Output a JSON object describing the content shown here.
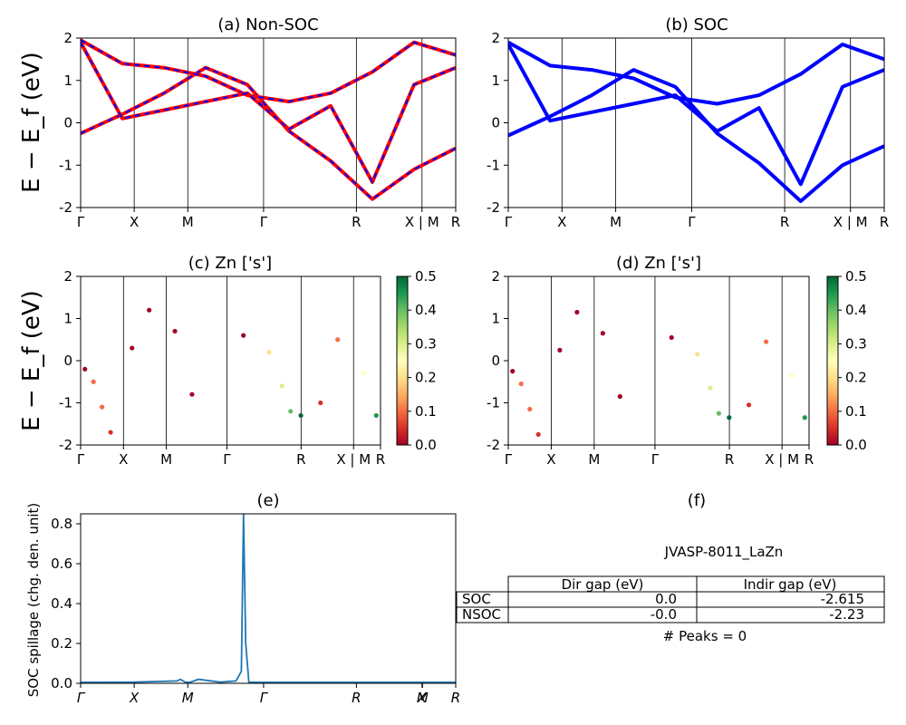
{
  "colors": {
    "nonsoc_line": "#ff0000",
    "nonsoc_dash": "#0000ff",
    "soc_line": "#0000ff",
    "spillage_line": "#1f77b4",
    "colormap": "RdYlGn"
  },
  "labels": {
    "ylabel_main": "E − E_f (eV)",
    "ylabel_spillage": "SOC spillage (chg. den. unit)"
  },
  "kpath": {
    "labels": [
      "Γ",
      "X",
      "M",
      "Γ",
      "R",
      "X | M",
      "R"
    ],
    "positions": [
      0,
      0.5,
      1.0,
      1.7071,
      2.5731,
      3.1855,
      3.5
    ]
  },
  "chart_data": [
    {
      "id": "a",
      "type": "line",
      "title": "(a) Non-SOC",
      "ylim": [
        -2,
        2
      ],
      "yticks": [
        -2,
        -1,
        0,
        1,
        2
      ],
      "series": [
        {
          "values": [
            -0.25,
            0.2,
            0.7,
            1.3,
            0.9,
            -0.2,
            -0.9,
            -1.8,
            -1.1,
            -0.6
          ]
        },
        {
          "values": [
            1.95,
            1.4,
            1.3,
            1.1,
            0.65,
            0.5,
            0.7,
            1.2,
            1.9,
            1.6
          ]
        },
        {
          "values": [
            1.9,
            0.1,
            0.3,
            0.5,
            0.7,
            -0.15,
            0.4,
            -1.4,
            0.9,
            1.3
          ]
        }
      ]
    },
    {
      "id": "b",
      "type": "line",
      "title": "(b) SOC",
      "ylim": [
        -2,
        2
      ],
      "yticks": [
        -2,
        -1,
        0,
        1,
        2
      ],
      "series": [
        {
          "values": [
            -0.3,
            0.15,
            0.65,
            1.25,
            0.85,
            -0.25,
            -0.95,
            -1.85,
            -1.0,
            -0.55
          ]
        },
        {
          "values": [
            1.9,
            1.35,
            1.25,
            1.05,
            0.6,
            0.45,
            0.65,
            1.15,
            1.85,
            1.5
          ]
        },
        {
          "values": [
            1.85,
            0.05,
            0.25,
            0.45,
            0.65,
            -0.2,
            0.35,
            -1.45,
            0.85,
            1.25
          ]
        }
      ]
    },
    {
      "id": "c",
      "type": "scatter",
      "title": "(c)  Zn ['s']",
      "ylim": [
        -2,
        2
      ],
      "yticks": [
        -2,
        -1,
        0,
        1,
        2
      ],
      "colorbar": {
        "min": 0.0,
        "max": 0.5,
        "ticks": [
          "0.0",
          "0.1",
          "0.2",
          "0.3",
          "0.4",
          "0.5"
        ]
      },
      "points": [
        {
          "x": 0.05,
          "y": -0.2,
          "c": 0.02
        },
        {
          "x": 0.15,
          "y": -0.5,
          "c": 0.08
        },
        {
          "x": 0.25,
          "y": -1.1,
          "c": 0.09
        },
        {
          "x": 0.35,
          "y": -1.7,
          "c": 0.07
        },
        {
          "x": 0.6,
          "y": 0.3,
          "c": 0.01
        },
        {
          "x": 0.8,
          "y": 1.2,
          "c": 0.01
        },
        {
          "x": 1.1,
          "y": 0.7,
          "c": 0.01
        },
        {
          "x": 1.3,
          "y": -0.8,
          "c": 0.01
        },
        {
          "x": 1.9,
          "y": 0.6,
          "c": 0.02
        },
        {
          "x": 2.2,
          "y": 0.2,
          "c": 0.22
        },
        {
          "x": 2.35,
          "y": -0.6,
          "c": 0.3
        },
        {
          "x": 2.45,
          "y": -1.2,
          "c": 0.42
        },
        {
          "x": 2.57,
          "y": -1.3,
          "c": 0.5
        },
        {
          "x": 2.8,
          "y": -1.0,
          "c": 0.03
        },
        {
          "x": 3.0,
          "y": 0.5,
          "c": 0.12
        },
        {
          "x": 3.3,
          "y": -0.3,
          "c": 0.25
        },
        {
          "x": 3.45,
          "y": -1.3,
          "c": 0.45
        }
      ]
    },
    {
      "id": "d",
      "type": "scatter",
      "title": "(d) Zn ['s']",
      "ylim": [
        -2,
        2
      ],
      "yticks": [
        -2,
        -1,
        0,
        1,
        2
      ],
      "colorbar": {
        "min": 0.0,
        "max": 0.5,
        "ticks": [
          "0.0",
          "0.1",
          "0.2",
          "0.3",
          "0.4",
          "0.5"
        ]
      },
      "points": [
        {
          "x": 0.05,
          "y": -0.25,
          "c": 0.02
        },
        {
          "x": 0.15,
          "y": -0.55,
          "c": 0.08
        },
        {
          "x": 0.25,
          "y": -1.15,
          "c": 0.09
        },
        {
          "x": 0.35,
          "y": -1.75,
          "c": 0.07
        },
        {
          "x": 0.6,
          "y": 0.25,
          "c": 0.01
        },
        {
          "x": 0.8,
          "y": 1.15,
          "c": 0.01
        },
        {
          "x": 1.1,
          "y": 0.65,
          "c": 0.01
        },
        {
          "x": 1.3,
          "y": -0.85,
          "c": 0.01
        },
        {
          "x": 1.9,
          "y": 0.55,
          "c": 0.02
        },
        {
          "x": 2.2,
          "y": 0.15,
          "c": 0.22
        },
        {
          "x": 2.35,
          "y": -0.65,
          "c": 0.3
        },
        {
          "x": 2.45,
          "y": -1.25,
          "c": 0.42
        },
        {
          "x": 2.57,
          "y": -1.35,
          "c": 0.5
        },
        {
          "x": 2.8,
          "y": -1.05,
          "c": 0.03
        },
        {
          "x": 3.0,
          "y": 0.45,
          "c": 0.12
        },
        {
          "x": 3.3,
          "y": -0.35,
          "c": 0.25
        },
        {
          "x": 3.45,
          "y": -1.35,
          "c": 0.45
        }
      ]
    },
    {
      "id": "e",
      "type": "line",
      "title": "(e)",
      "ylabel": "SOC spillage (chg. den. unit)",
      "ylim": [
        0,
        0.85
      ],
      "yticks": [
        "0.0",
        "0.2",
        "0.4",
        "0.6",
        "0.8"
      ],
      "xticks": [
        "Γ",
        "X",
        "M",
        "Γ",
        "R",
        "X",
        "M",
        "R"
      ],
      "x": [
        0,
        0.5,
        0.9,
        0.93,
        0.98,
        1.02,
        1.1,
        1.3,
        1.45,
        1.5,
        1.52,
        1.54,
        1.57,
        1.6,
        2.0,
        2.5,
        3.0,
        3.5
      ],
      "y": [
        0.005,
        0.006,
        0.012,
        0.02,
        0.005,
        0.005,
        0.02,
        0.006,
        0.012,
        0.06,
        0.85,
        0.2,
        0.005,
        0.005,
        0.005,
        0.005,
        0.005,
        0.005
      ]
    },
    {
      "id": "f",
      "type": "table",
      "title": "(f)",
      "caption": "JVASP-8011_LaZn",
      "columns": [
        "Dir gap (eV)",
        "Indir gap (eV)"
      ],
      "rows": [
        {
          "label": "SOC",
          "dir": "0.0",
          "indir": "-2.615"
        },
        {
          "label": "NSOC",
          "dir": "-0.0",
          "indir": "-2.23"
        }
      ],
      "footer": "# Peaks = 0"
    }
  ]
}
